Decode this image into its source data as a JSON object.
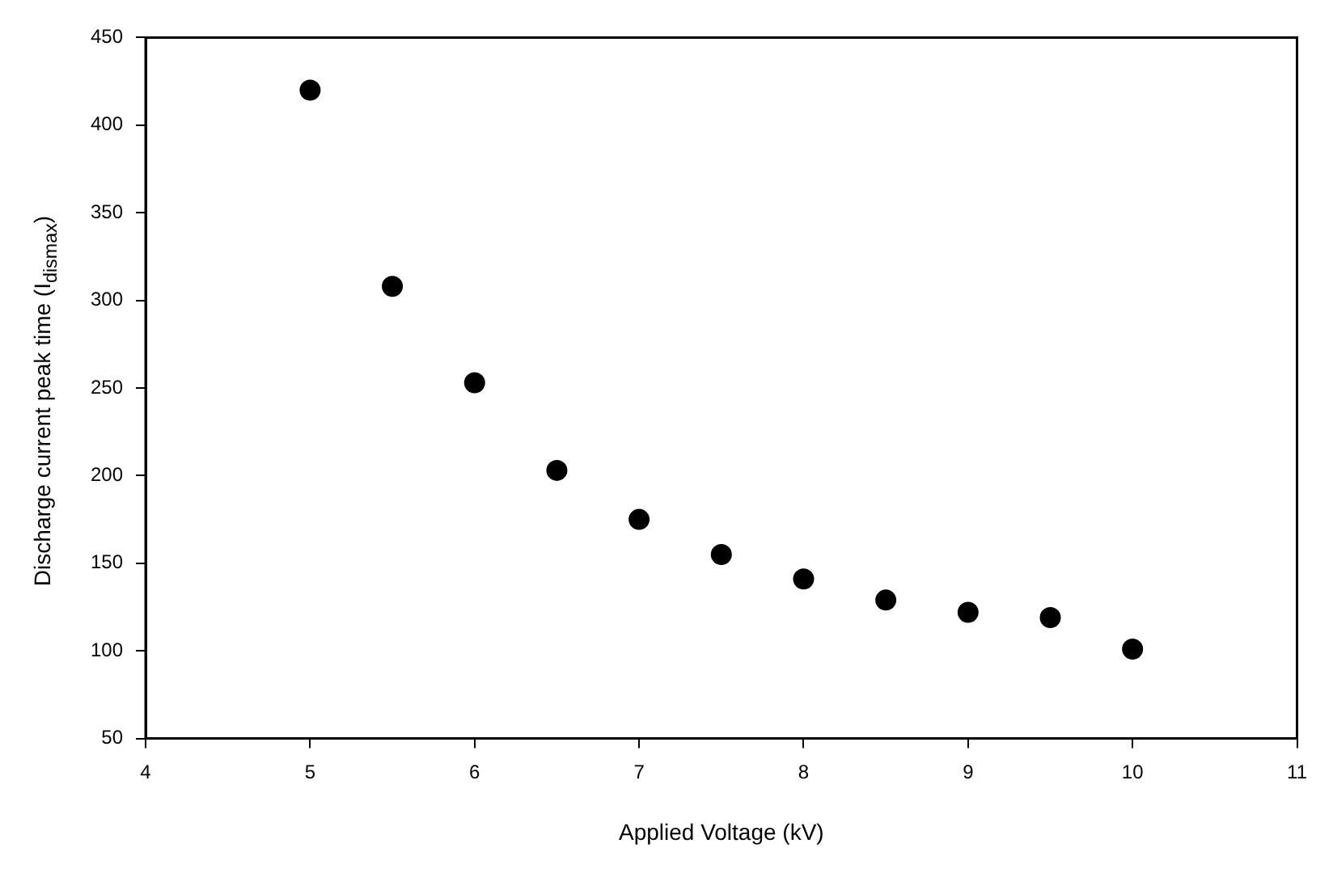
{
  "chart_data": {
    "type": "scatter",
    "xlabel": "Applied Voltage (kV)",
    "ylabel": "Discharge current peak time (I$_{dismax}$)",
    "x": [
      5,
      5.5,
      6,
      6.5,
      7,
      7.5,
      8,
      8.5,
      9,
      9.5,
      10
    ],
    "series": [
      {
        "color": "#000000",
        "values": [
          420,
          308,
          253,
          203,
          175,
          155,
          141,
          129,
          122,
          119,
          101
        ]
      }
    ],
    "xlim": [
      4,
      11
    ],
    "xticks": [
      4,
      5,
      6,
      7,
      8,
      9,
      10,
      11
    ],
    "ylim": [
      50,
      450
    ],
    "yticks": [
      50,
      100,
      150,
      200,
      250,
      300,
      350,
      400,
      450
    ],
    "grid": false,
    "legend": false,
    "marker": "circle"
  }
}
